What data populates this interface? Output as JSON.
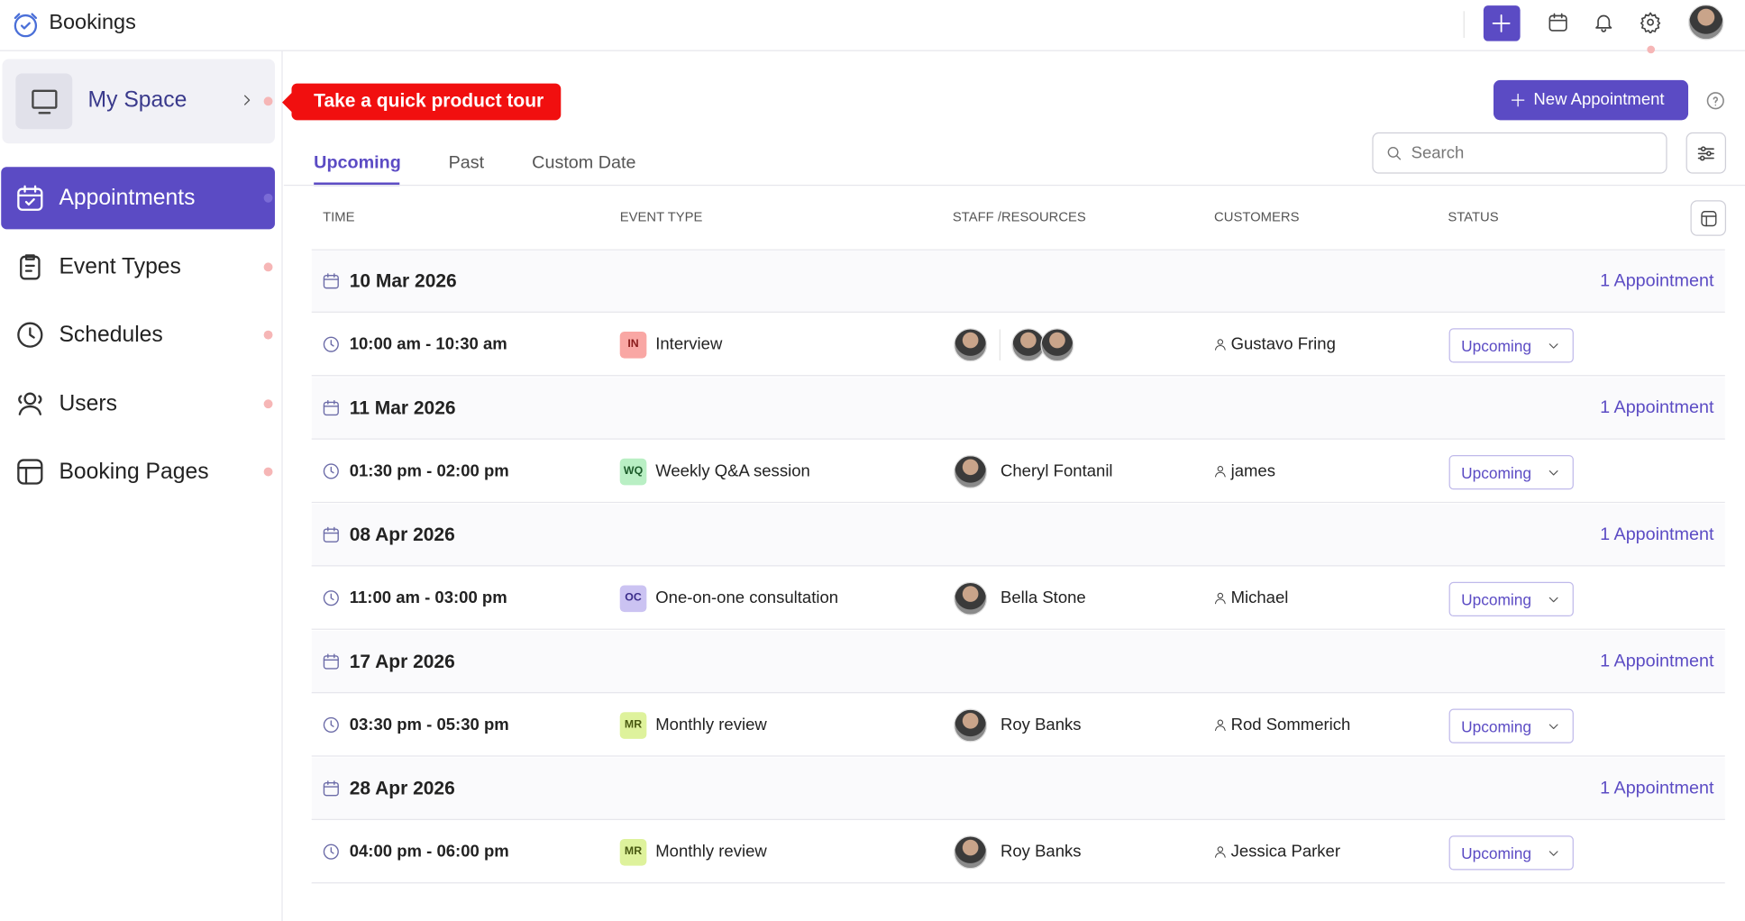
{
  "header": {
    "app_name": "Bookings"
  },
  "sidebar": {
    "my_space": "My Space",
    "tour": "Take a quick product tour",
    "nav": [
      "Appointments",
      "Event Types",
      "Schedules",
      "Users",
      "Booking Pages"
    ]
  },
  "toolbar": {
    "new_appointment": "New Appointment",
    "search_placeholder": "Search",
    "tabs": [
      "Upcoming",
      "Past",
      "Custom Date"
    ]
  },
  "table": {
    "columns": [
      "TIME",
      "EVENT TYPE",
      "STAFF /RESOURCES",
      "CUSTOMERS",
      "STATUS"
    ],
    "groups": [
      {
        "date": "10 Mar 2026",
        "count": "1 Appointment",
        "rows": [
          {
            "time": "10:00 am - 10:30 am",
            "event_code": "IN",
            "event": "Interview",
            "customer": "Gustavo Fring",
            "status": "Upcoming"
          }
        ]
      },
      {
        "date": "11 Mar 2026",
        "count": "1 Appointment",
        "rows": [
          {
            "time": "01:30 pm - 02:00 pm",
            "event_code": "WQ",
            "event": "Weekly Q&A session",
            "staff": "Cheryl Fontanil",
            "customer": "james",
            "status": "Upcoming"
          }
        ]
      },
      {
        "date": "08 Apr 2026",
        "count": "1 Appointment",
        "rows": [
          {
            "time": "11:00 am - 03:00 pm",
            "event_code": "OC",
            "event": "One-on-one consultation",
            "staff": "Bella Stone",
            "customer": "Michael",
            "status": "Upcoming"
          }
        ]
      },
      {
        "date": "17 Apr 2026",
        "count": "1 Appointment",
        "rows": [
          {
            "time": "03:30 pm - 05:30 pm",
            "event_code": "MR",
            "event": "Monthly review",
            "staff": "Roy Banks",
            "customer": "Rod Sommerich",
            "status": "Upcoming"
          }
        ]
      },
      {
        "date": "28 Apr 2026",
        "count": "1 Appointment",
        "rows": [
          {
            "time": "04:00 pm - 06:00 pm",
            "event_code": "MR",
            "event": "Monthly review",
            "staff": "Roy Banks",
            "customer": "Jessica Parker",
            "status": "Upcoming"
          }
        ]
      }
    ]
  }
}
